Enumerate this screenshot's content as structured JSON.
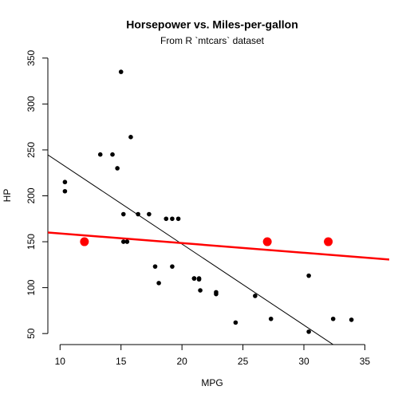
{
  "chart_data": {
    "type": "scatter",
    "title": "Horsepower vs. Miles-per-gallon",
    "subtitle": "From R `mtcars` dataset",
    "x_label": "MPG",
    "y_label": "HP",
    "xlim": [
      9,
      37
    ],
    "ylim": [
      38,
      362
    ],
    "xticks": [
      10,
      15,
      20,
      25,
      30,
      35
    ],
    "yticks": [
      50,
      100,
      150,
      200,
      250,
      300,
      350
    ],
    "series": [
      {
        "color": "#000000",
        "x": [
          21,
          21,
          22.8,
          21.4,
          18.7,
          18.1,
          14.3,
          24.4,
          22.8,
          19.2,
          17.8,
          16.4,
          17.3,
          15.2,
          10.4,
          10.4,
          14.7,
          32.4,
          30.4,
          33.9,
          21.5,
          15.5,
          15.2,
          13.3,
          19.2,
          27.3,
          26,
          30.4,
          15.8,
          19.7,
          15,
          21.4
        ],
        "values": [
          110,
          110,
          93,
          110,
          175,
          105,
          245,
          62,
          95,
          123,
          123,
          180,
          180,
          180,
          205,
          215,
          230,
          66,
          52,
          65,
          97,
          150,
          150,
          245,
          175,
          66,
          91,
          113,
          264,
          175,
          335,
          109
        ]
      },
      {
        "color": "#ff0000",
        "x": [
          12,
          27,
          32
        ],
        "values": [
          150,
          150,
          150
        ]
      }
    ],
    "lines": [
      {
        "color": "#000000",
        "intercept": 324.08,
        "slope": -8.83
      },
      {
        "color": "#ff0000",
        "intercept": 169.5,
        "slope": -1.05
      }
    ]
  }
}
